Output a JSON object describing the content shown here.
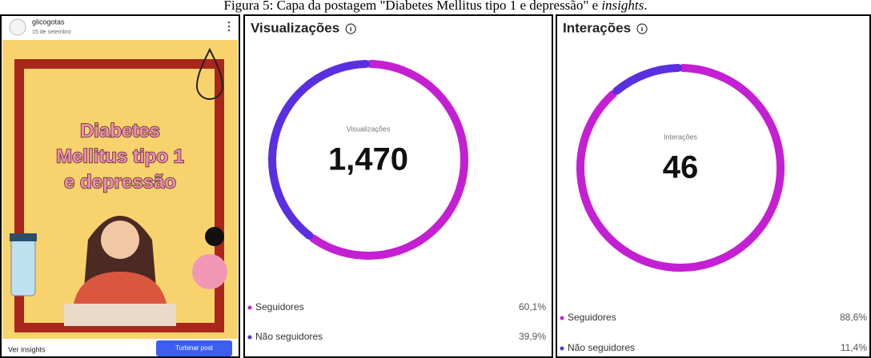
{
  "caption": {
    "text": "Figura 5: Capa da postagem \"Diabetes Mellitus tipo 1 e depressão\" e ",
    "emphasis": "insights",
    "end": "."
  },
  "post": {
    "username": "glicogotas",
    "date": "15 de setembro",
    "title_lines": [
      "Diabetes",
      "Mellitus tipo 1",
      "e depressão"
    ],
    "insights_link": "Ver insights",
    "boost_button": "Turbinar post"
  },
  "panels": [
    {
      "title": "Visualizações",
      "center_label": "Visualizações",
      "total": {
        "value": 1470,
        "label": "1,470"
      },
      "segments": [
        {
          "name": "Seguidores",
          "value": 60.1,
          "value_label": "60,1%",
          "color": "#c41fd3"
        },
        {
          "name": "Não seguidores",
          "value": 39.9,
          "value_label": "39,9%",
          "color": "#5a2fe0"
        }
      ]
    },
    {
      "title": "Interações",
      "center_label": "Interações",
      "total": {
        "value": 46,
        "label": "46"
      },
      "segments": [
        {
          "name": "Seguidores",
          "value": 88.6,
          "value_label": "88,6%",
          "color": "#c41fd3"
        },
        {
          "name": "Não seguidores",
          "value": 11.4,
          "value_label": "11,4%",
          "color": "#5a2fe0"
        }
      ]
    }
  ]
}
